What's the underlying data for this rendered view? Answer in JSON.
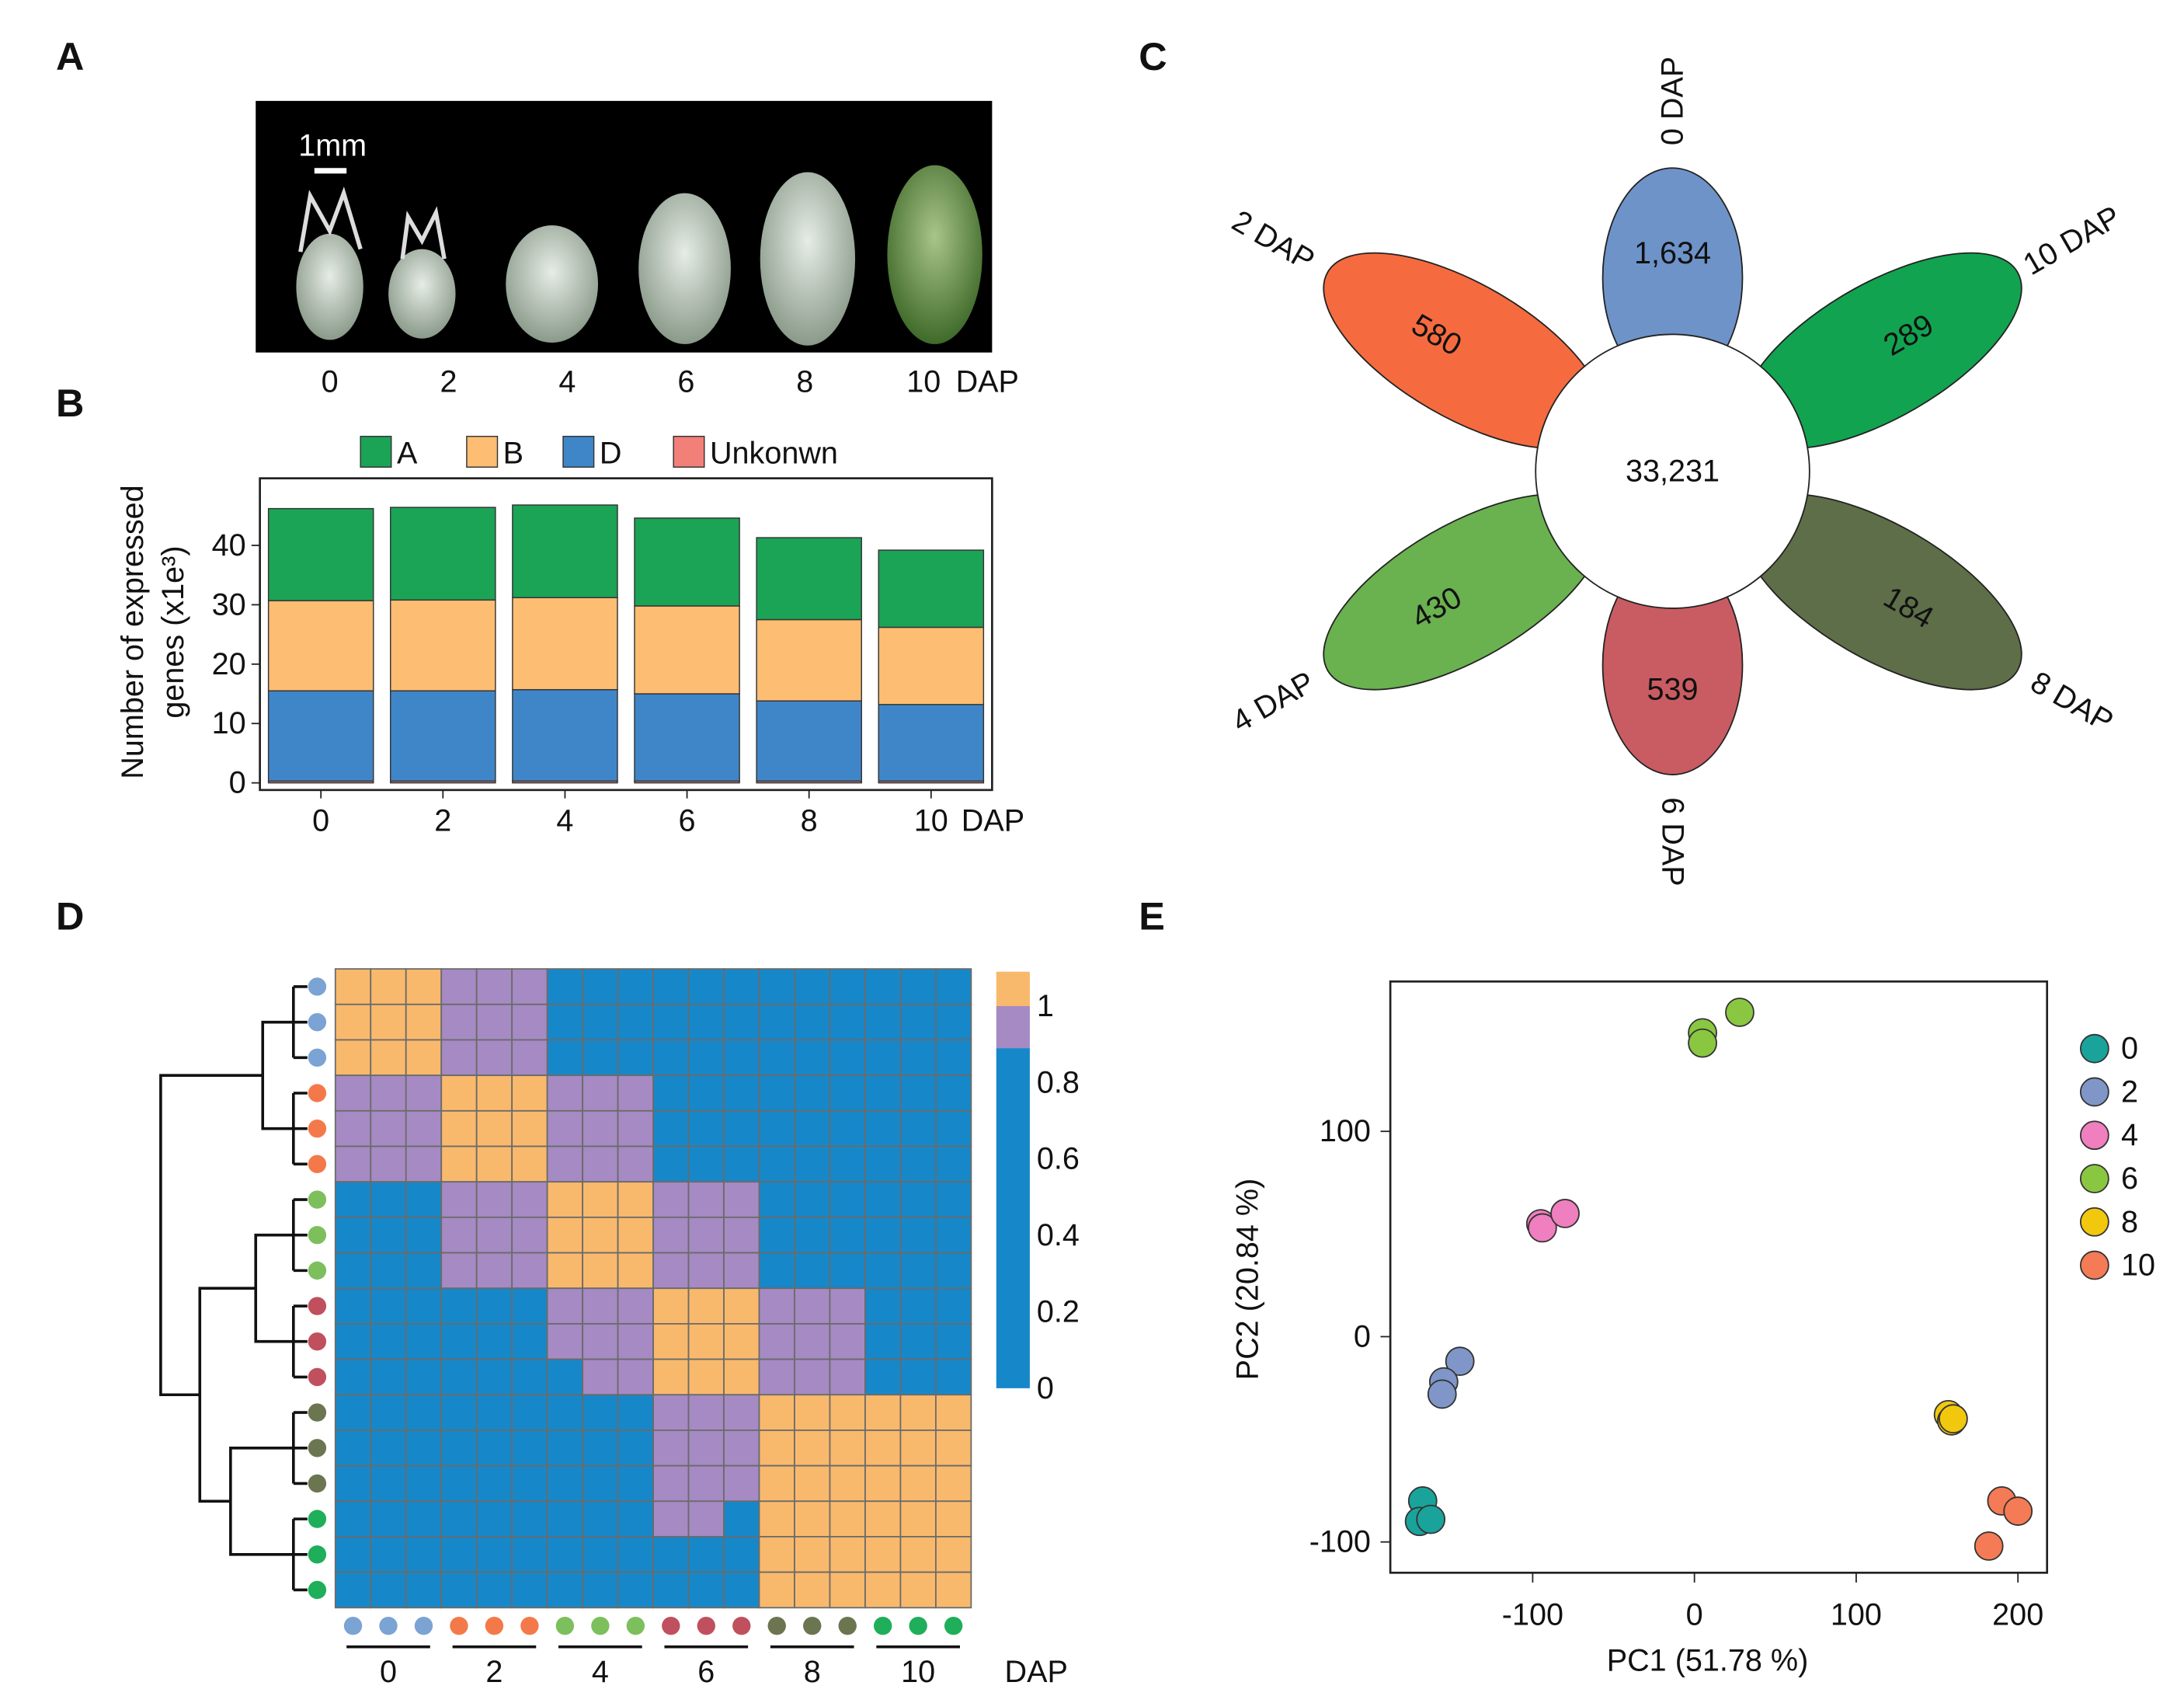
{
  "panel_labels": [
    "A",
    "B",
    "C",
    "D",
    "E"
  ],
  "photo": {
    "scale_label": "1mm",
    "stages": [
      "0",
      "2",
      "4",
      "6",
      "8",
      "10"
    ],
    "unit": "DAP"
  },
  "chart_data": [
    {
      "type": "bar",
      "stacked": true,
      "y_label": [
        "Number of expressed",
        "genes (x1e³)"
      ],
      "x_unit": "DAP",
      "categories": [
        "0",
        "2",
        "4",
        "6",
        "8",
        "10"
      ],
      "series": [
        {
          "name": "A",
          "color": "#1ba356",
          "values": [
            15.5,
            15.6,
            15.6,
            14.8,
            13.8,
            13.0
          ]
        },
        {
          "name": "B",
          "color": "#fdbd72",
          "values": [
            15.2,
            15.3,
            15.5,
            14.8,
            13.7,
            13.0
          ]
        },
        {
          "name": "D",
          "color": "#3f86c8",
          "values": [
            15.2,
            15.2,
            15.4,
            14.7,
            13.5,
            12.9
          ]
        },
        {
          "name": "Unkonwn",
          "color": "#f27f78",
          "values": [
            0.3,
            0.3,
            0.3,
            0.3,
            0.3,
            0.3
          ]
        }
      ],
      "ylim": [
        -1.2,
        51.3
      ],
      "yticks": [
        0,
        10,
        20,
        30,
        40
      ]
    },
    {
      "type": "flower",
      "categories": [
        "0 DAP",
        "10 DAP",
        "8 DAP",
        "6 DAP",
        "4 DAP",
        "2 DAP"
      ],
      "values": [
        1634,
        289,
        184,
        539,
        430,
        580
      ],
      "value_labels": [
        "1,634",
        "289",
        "184",
        "539",
        "430",
        "580"
      ],
      "colors": [
        "#6e93c9",
        "#12a350",
        "#5e6e48",
        "#c95c62",
        "#6ab150",
        "#f56b3f"
      ],
      "core_value": 33231,
      "core_label": "33,231"
    },
    {
      "type": "heatmap",
      "group_labels": [
        "0",
        "2",
        "4",
        "6",
        "8",
        "10"
      ],
      "x_unit": "DAP",
      "group_colors": [
        "#7ba3d4",
        "#f4794a",
        "#7dbf5c",
        "#c0505d",
        "#6b7650",
        "#1fae5a"
      ],
      "z": [
        [
          1,
          1,
          1,
          0.95,
          0.95,
          0.95,
          0.7,
          0.7,
          0.7,
          0.7,
          0.7,
          0.7,
          0.7,
          0.7,
          0.7,
          0.7,
          0.7,
          0.7
        ],
        [
          1,
          1,
          1,
          0.95,
          0.95,
          0.95,
          0.7,
          0.7,
          0.7,
          0.7,
          0.7,
          0.7,
          0.7,
          0.7,
          0.7,
          0.7,
          0.7,
          0.7
        ],
        [
          1,
          1,
          1,
          0.95,
          0.95,
          0.95,
          0.7,
          0.7,
          0.7,
          0.7,
          0.7,
          0.7,
          0.7,
          0.7,
          0.7,
          0.7,
          0.7,
          0.7
        ],
        [
          0.95,
          0.95,
          0.95,
          1,
          1,
          1,
          0.95,
          0.95,
          0.95,
          0.7,
          0.7,
          0.7,
          0.7,
          0.7,
          0.7,
          0.7,
          0.7,
          0.7
        ],
        [
          0.95,
          0.95,
          0.95,
          1,
          1,
          1,
          0.95,
          0.95,
          0.95,
          0.7,
          0.7,
          0.7,
          0.7,
          0.7,
          0.7,
          0.7,
          0.7,
          0.7
        ],
        [
          0.95,
          0.95,
          0.95,
          1,
          1,
          1,
          0.95,
          0.95,
          0.95,
          0.7,
          0.7,
          0.7,
          0.7,
          0.7,
          0.7,
          0.7,
          0.7,
          0.7
        ],
        [
          0.7,
          0.7,
          0.7,
          0.95,
          0.95,
          0.95,
          1,
          1,
          1,
          0.95,
          0.95,
          0.95,
          0.7,
          0.7,
          0.7,
          0.7,
          0.7,
          0.7
        ],
        [
          0.7,
          0.7,
          0.7,
          0.95,
          0.95,
          0.95,
          1,
          1,
          1,
          0.95,
          0.95,
          0.95,
          0.7,
          0.7,
          0.7,
          0.7,
          0.7,
          0.7
        ],
        [
          0.7,
          0.7,
          0.7,
          0.95,
          0.95,
          0.95,
          1,
          1,
          1,
          0.95,
          0.95,
          0.95,
          0.7,
          0.7,
          0.7,
          0.7,
          0.7,
          0.7
        ],
        [
          0.7,
          0.7,
          0.7,
          0.7,
          0.7,
          0.7,
          0.95,
          0.95,
          0.95,
          1,
          1,
          1,
          0.95,
          0.95,
          0.95,
          0.7,
          0.7,
          0.7
        ],
        [
          0.7,
          0.7,
          0.7,
          0.7,
          0.7,
          0.7,
          0.95,
          0.95,
          0.95,
          1,
          1,
          1,
          0.95,
          0.95,
          0.95,
          0.7,
          0.7,
          0.7
        ],
        [
          0.7,
          0.7,
          0.7,
          0.7,
          0.7,
          0.7,
          0.7,
          0.95,
          0.95,
          1,
          1,
          1,
          0.95,
          0.95,
          0.95,
          0.7,
          0.7,
          0.7
        ],
        [
          0.7,
          0.7,
          0.7,
          0.7,
          0.7,
          0.7,
          0.7,
          0.7,
          0.7,
          0.95,
          0.95,
          0.95,
          1,
          1,
          1,
          1,
          1,
          1
        ],
        [
          0.7,
          0.7,
          0.7,
          0.7,
          0.7,
          0.7,
          0.7,
          0.7,
          0.7,
          0.95,
          0.95,
          0.95,
          1,
          1,
          1,
          1,
          1,
          1
        ],
        [
          0.7,
          0.7,
          0.7,
          0.7,
          0.7,
          0.7,
          0.7,
          0.7,
          0.7,
          0.95,
          0.95,
          0.95,
          1,
          1,
          1,
          1,
          1,
          1
        ],
        [
          0.7,
          0.7,
          0.7,
          0.7,
          0.7,
          0.7,
          0.7,
          0.7,
          0.7,
          0.95,
          0.95,
          0.7,
          1,
          1,
          1,
          1,
          1,
          1
        ],
        [
          0.7,
          0.7,
          0.7,
          0.7,
          0.7,
          0.7,
          0.7,
          0.7,
          0.7,
          0.7,
          0.7,
          0.7,
          1,
          1,
          1,
          1,
          1,
          1
        ],
        [
          0.7,
          0.7,
          0.7,
          0.7,
          0.7,
          0.7,
          0.7,
          0.7,
          0.7,
          0.7,
          0.7,
          0.7,
          1,
          1,
          1,
          1,
          1,
          1
        ]
      ],
      "color_breaks": [
        0.89,
        1
      ],
      "colors": [
        "#1688c9",
        "#a68ac3",
        "#f9b96c"
      ],
      "clim": [
        0,
        1.09
      ],
      "cticks": [
        0,
        0.2,
        0.4,
        0.6,
        0.8,
        1
      ]
    },
    {
      "type": "scatter",
      "x_label": "PC1 (51.78 %)",
      "y_label": "PC2 (20.84 %)",
      "xlim": [
        -188,
        218
      ],
      "ylim": [
        -115,
        173
      ],
      "xticks": [
        -100,
        0,
        100,
        200
      ],
      "yticks": [
        -100,
        0,
        100
      ],
      "series": [
        {
          "name": "0",
          "color": "#1aa39a",
          "x": [
            -168,
            -170,
            -163
          ],
          "y": [
            -80,
            -90,
            -89
          ]
        },
        {
          "name": "2",
          "color": "#8096c8",
          "x": [
            -145,
            -155,
            -156
          ],
          "y": [
            -12,
            -22,
            -28
          ]
        },
        {
          "name": "4",
          "color": "#ef7fbf",
          "x": [
            -95,
            -94,
            -80
          ],
          "y": [
            55,
            53,
            60
          ]
        },
        {
          "name": "6",
          "color": "#8ac741",
          "x": [
            5,
            5,
            28
          ],
          "y": [
            148,
            143,
            158
          ]
        },
        {
          "name": "8",
          "color": "#f2c80f",
          "x": [
            157,
            159,
            160
          ],
          "y": [
            -38,
            -41,
            -40
          ]
        },
        {
          "name": "10",
          "color": "#f47b55",
          "x": [
            190,
            200,
            182
          ],
          "y": [
            -80,
            -85,
            -102
          ]
        }
      ]
    }
  ]
}
